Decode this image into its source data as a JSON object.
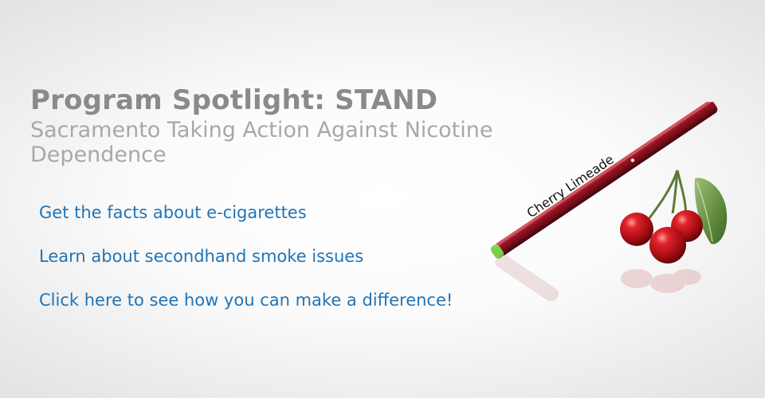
{
  "spotlight": {
    "title": "Program Spotlight: STAND",
    "subtitle": "Sacramento Taking Action Against Nicotine Dependence"
  },
  "links": [
    {
      "label": "Get the facts about e-cigarettes"
    },
    {
      "label": "Learn about secondhand smoke issues"
    },
    {
      "label": "Click here to see how you can make a difference!"
    }
  ],
  "product": {
    "flavor_label": "Cherry Limeade"
  },
  "colors": {
    "title": "#8a8a8a",
    "subtitle": "#a8a8a8",
    "link": "#1f74b8",
    "ecig_body": "#8b1020",
    "ecig_tip": "#7bd24a",
    "cherry": "#b5121b",
    "leaf": "#5f8b3c"
  }
}
